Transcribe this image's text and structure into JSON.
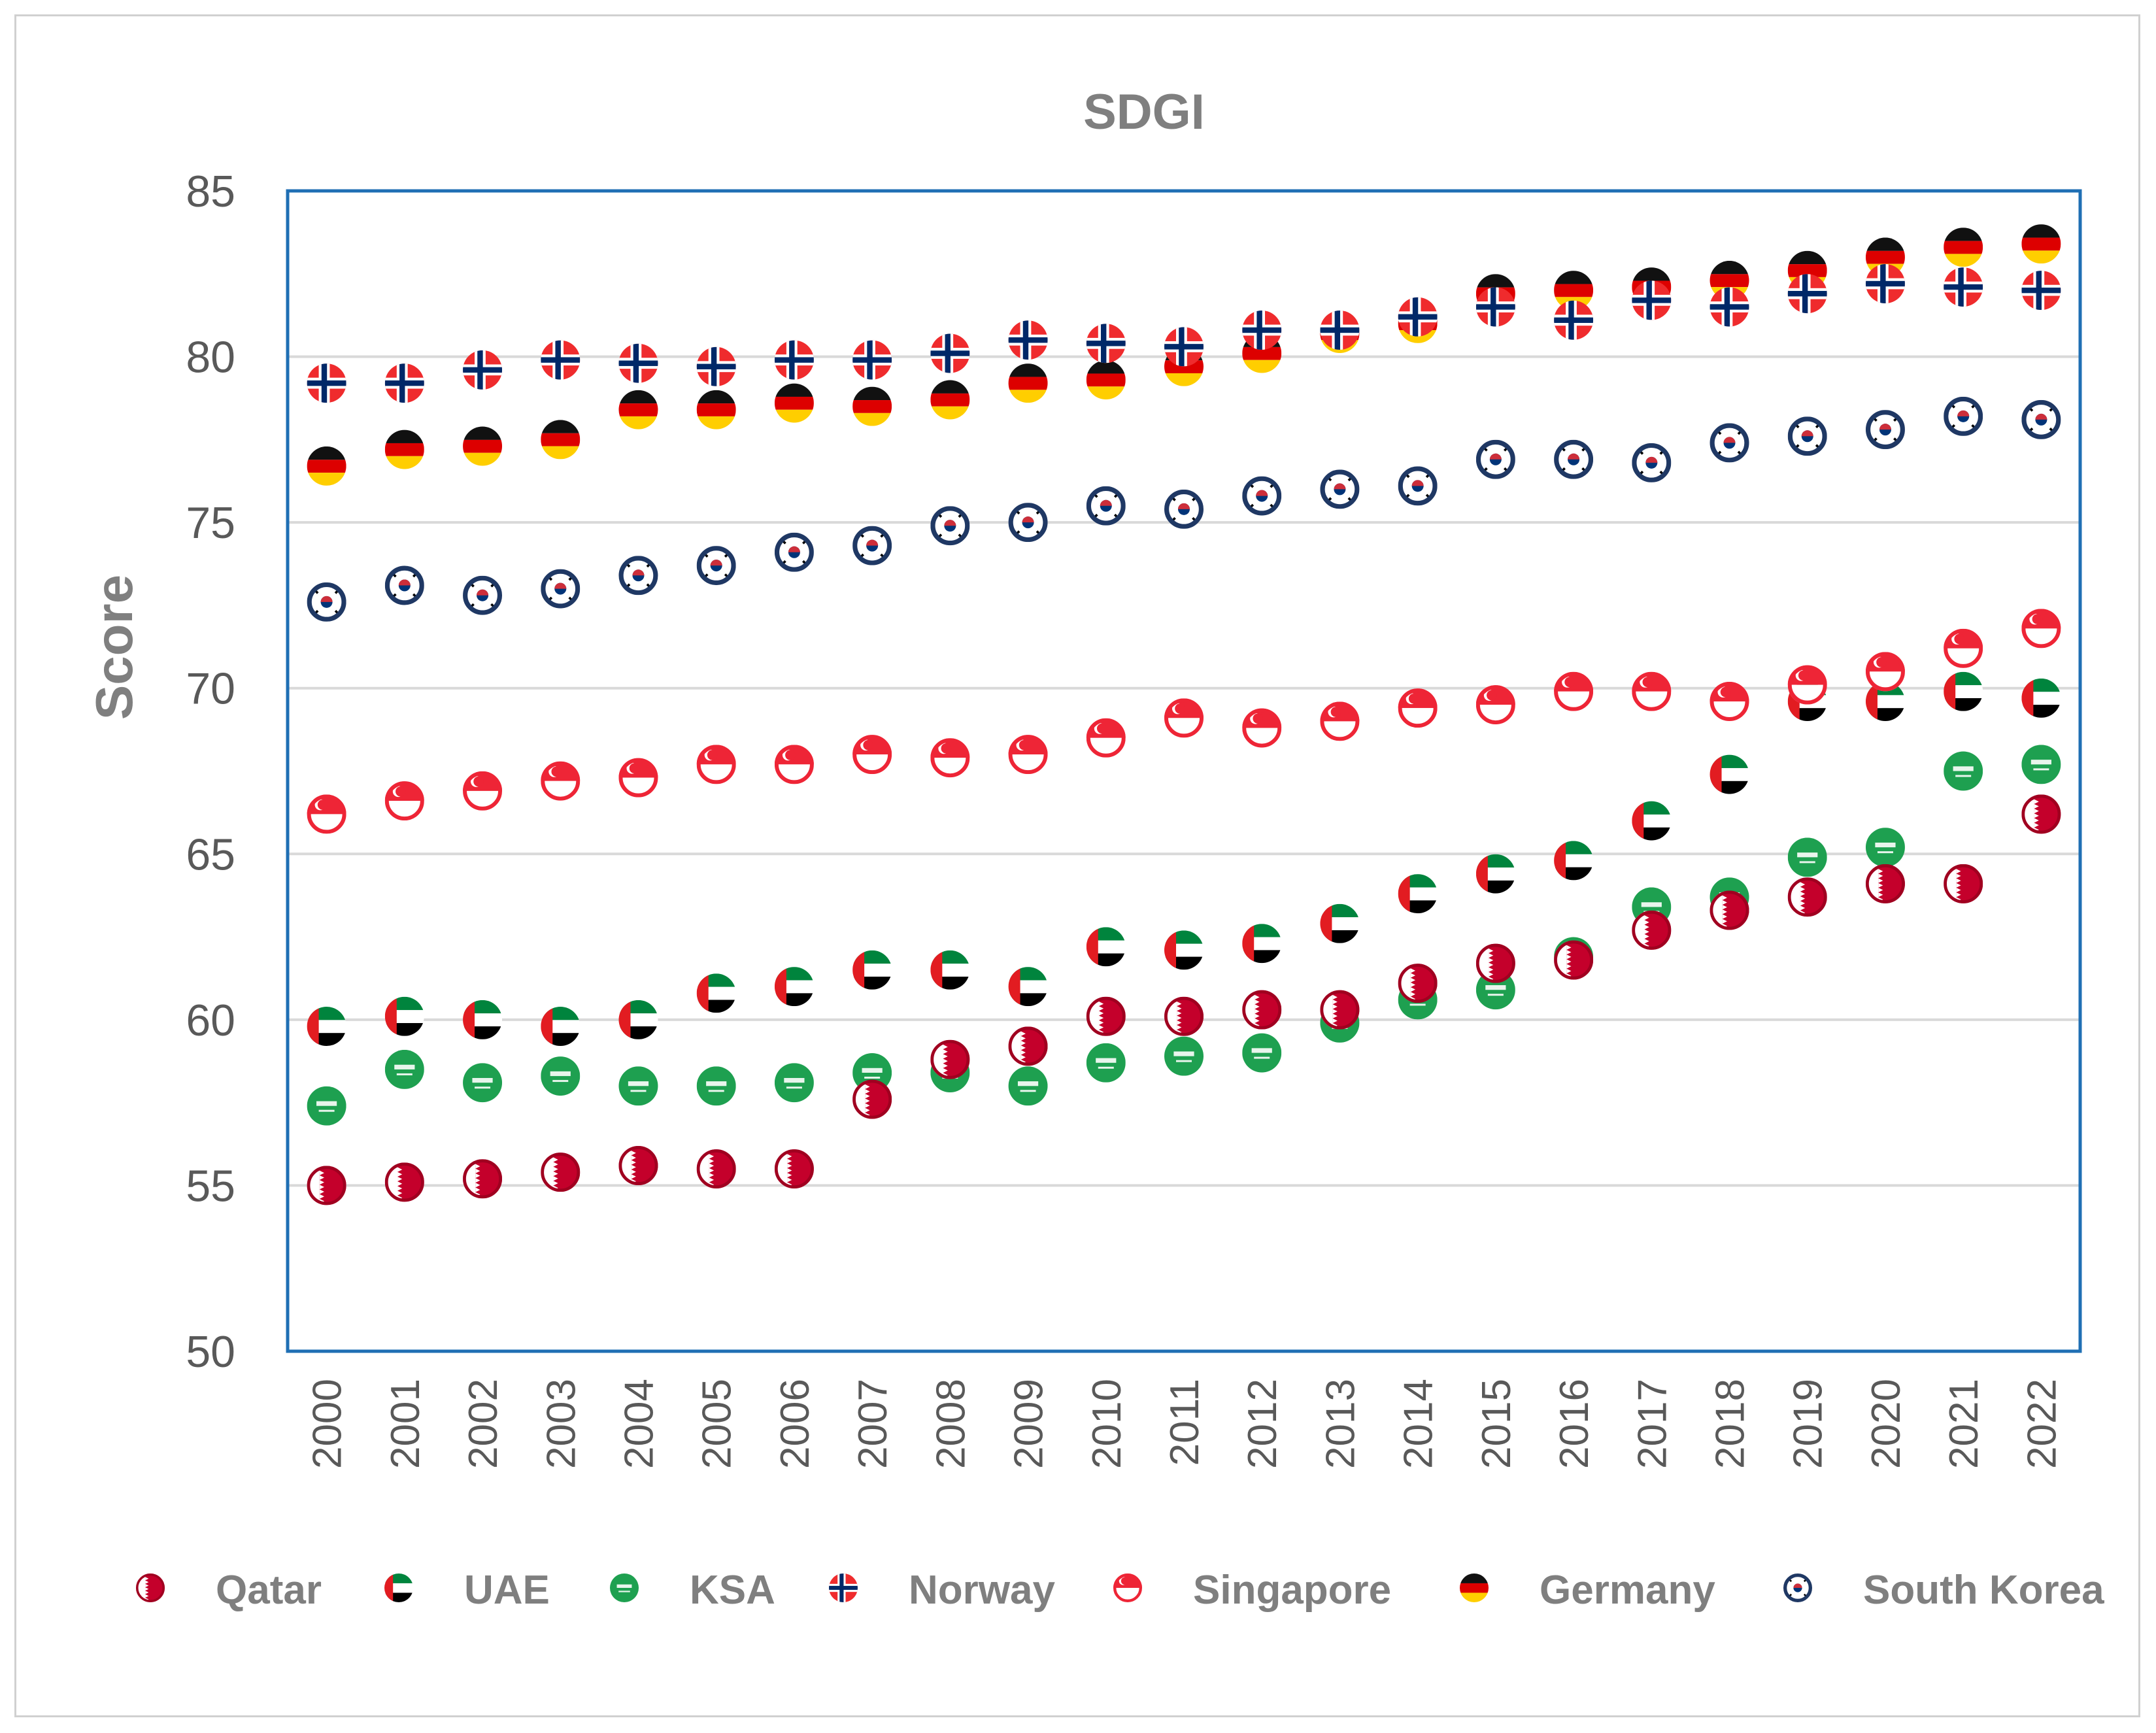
{
  "chart_data": {
    "type": "scatter",
    "title": "SDGI",
    "xlabel": "",
    "ylabel": "Score",
    "ylim": [
      50,
      85
    ],
    "yticks": [
      50,
      55,
      60,
      65,
      70,
      75,
      80,
      85
    ],
    "categories": [
      "2000",
      "2001",
      "2002",
      "2003",
      "2004",
      "2005",
      "2006",
      "2007",
      "2008",
      "2009",
      "2010",
      "2011",
      "2012",
      "2013",
      "2014",
      "2015",
      "2016",
      "2017",
      "2018",
      "2019",
      "2020",
      "2021",
      "2022"
    ],
    "grid": true,
    "legend_position": "bottom",
    "series": [
      {
        "name": "Qatar",
        "color": "#c00000",
        "marker": "qatar-flag",
        "values": [
          55.0,
          55.1,
          55.2,
          55.4,
          55.6,
          55.5,
          55.5,
          57.6,
          58.8,
          59.2,
          60.1,
          60.1,
          60.3,
          60.3,
          61.1,
          61.7,
          61.8,
          62.7,
          63.3,
          63.7,
          64.1,
          64.1,
          66.2
        ]
      },
      {
        "name": "UAE",
        "color": "#00843d",
        "marker": "uae-flag",
        "values": [
          59.8,
          60.1,
          60.0,
          59.8,
          60.0,
          60.8,
          61.0,
          61.5,
          61.5,
          61.0,
          62.2,
          62.1,
          62.3,
          62.9,
          63.8,
          64.4,
          64.8,
          66.0,
          67.4,
          69.6,
          69.6,
          69.9,
          69.7
        ]
      },
      {
        "name": "KSA",
        "color": "#1ea050",
        "marker": "ksa-flag",
        "values": [
          57.4,
          58.5,
          58.1,
          58.3,
          58.0,
          58.0,
          58.1,
          58.4,
          58.4,
          58.0,
          58.7,
          58.9,
          59.0,
          59.9,
          60.6,
          60.9,
          61.9,
          63.4,
          63.7,
          64.9,
          65.2,
          67.5,
          67.7
        ]
      },
      {
        "name": "Norway",
        "color": "#ef2b2d",
        "marker": "norway-flag",
        "values": [
          79.2,
          79.2,
          79.6,
          79.9,
          79.8,
          79.7,
          79.9,
          79.9,
          80.1,
          80.5,
          80.4,
          80.3,
          80.8,
          80.8,
          81.2,
          81.5,
          81.1,
          81.7,
          81.5,
          81.9,
          82.2,
          82.1,
          82.0
        ]
      },
      {
        "name": "Singapore",
        "color": "#ee2536",
        "marker": "singapore-flag",
        "values": [
          66.2,
          66.6,
          66.9,
          67.2,
          67.3,
          67.7,
          67.7,
          68.0,
          67.9,
          68.0,
          68.5,
          69.1,
          68.8,
          69.0,
          69.4,
          69.5,
          69.9,
          69.9,
          69.6,
          70.1,
          70.5,
          71.2,
          71.8
        ]
      },
      {
        "name": "Germany",
        "color": "#000000",
        "marker": "germany-flag",
        "values": [
          76.7,
          77.2,
          77.3,
          77.5,
          78.4,
          78.4,
          78.6,
          78.5,
          78.7,
          79.2,
          79.3,
          79.7,
          80.1,
          80.7,
          81.0,
          81.9,
          82.0,
          82.1,
          82.3,
          82.6,
          83.0,
          83.3,
          83.4
        ]
      },
      {
        "name": "South Korea",
        "color": "#003478",
        "marker": "south-korea-flag",
        "values": [
          72.6,
          73.1,
          72.8,
          73.0,
          73.4,
          73.7,
          74.1,
          74.3,
          74.9,
          75.0,
          75.5,
          75.4,
          75.8,
          76.0,
          76.1,
          76.9,
          76.9,
          76.8,
          77.4,
          77.6,
          77.8,
          78.2,
          78.1
        ]
      }
    ]
  },
  "colors": {
    "plot_border": "#1f6fb4",
    "gridline": "#d9d9d9",
    "text": "#595959",
    "title_text": "#7f7f7f"
  }
}
